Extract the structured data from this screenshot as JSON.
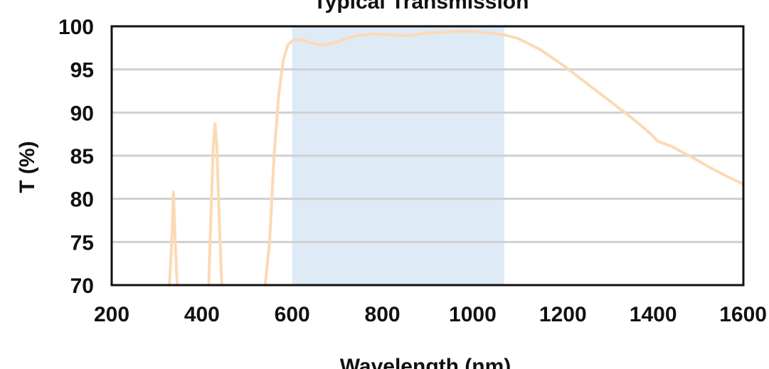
{
  "chart_data": {
    "type": "line",
    "title": "Typical Transmission",
    "xlabel": "Wavelength (nm)",
    "ylabel": "T (%)",
    "xlim": [
      200,
      1600
    ],
    "ylim": [
      70,
      100
    ],
    "x_ticks": [
      200,
      400,
      600,
      800,
      1000,
      1200,
      1400,
      1600
    ],
    "y_ticks": [
      70,
      75,
      80,
      85,
      90,
      95,
      100
    ],
    "grid": "horizontal",
    "highlight_band": {
      "x_range": [
        600,
        1070
      ],
      "color": "#deebf6"
    },
    "colors": {
      "line": "#fcd9b5",
      "grid": "#d0d0d0",
      "frame": "#111111"
    },
    "series": [
      {
        "segments": [
          [
            [
              328,
              70
            ],
            [
              333,
              75
            ],
            [
              337,
              80.8
            ],
            [
              341,
              75
            ],
            [
              345,
              70
            ]
          ],
          [
            [
              415,
              70
            ],
            [
              420,
              78
            ],
            [
              425,
              86
            ],
            [
              429,
              88.7
            ],
            [
              433,
              86
            ],
            [
              438,
              78
            ],
            [
              444,
              70
            ]
          ],
          [
            [
              540,
              70
            ],
            [
              550,
              75
            ],
            [
              560,
              85
            ],
            [
              570,
              92
            ],
            [
              580,
              96
            ],
            [
              590,
              97.8
            ],
            [
              600,
              98.3
            ],
            [
              615,
              98.5
            ],
            [
              640,
              98.1
            ],
            [
              670,
              97.8
            ],
            [
              700,
              98.2
            ],
            [
              740,
              98.9
            ],
            [
              780,
              99.1
            ],
            [
              820,
              99.0
            ],
            [
              860,
              98.9
            ],
            [
              890,
              99.2
            ],
            [
              930,
              99.3
            ],
            [
              970,
              99.4
            ],
            [
              1000,
              99.4
            ],
            [
              1040,
              99.2
            ],
            [
              1070,
              99.0
            ],
            [
              1100,
              98.6
            ],
            [
              1150,
              97.3
            ],
            [
              1200,
              95.5
            ],
            [
              1250,
              93.5
            ],
            [
              1300,
              91.5
            ],
            [
              1350,
              89.5
            ],
            [
              1380,
              88.2
            ],
            [
              1395,
              87.5
            ],
            [
              1410,
              86.7
            ],
            [
              1440,
              86.1
            ],
            [
              1480,
              85.0
            ],
            [
              1520,
              83.8
            ],
            [
              1560,
              82.7
            ],
            [
              1600,
              81.7
            ]
          ]
        ]
      }
    ]
  }
}
